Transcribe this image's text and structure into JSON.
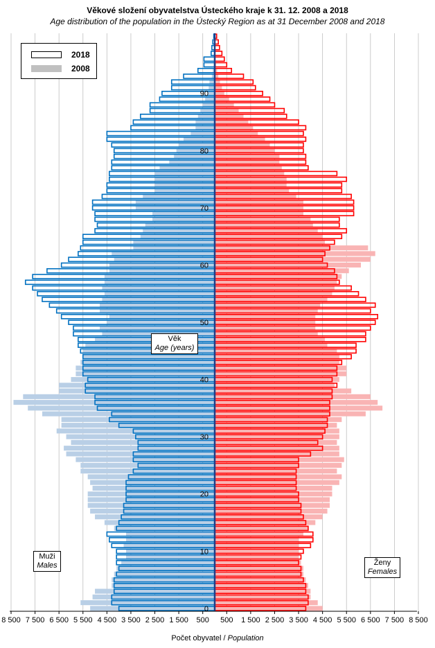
{
  "title": "Věkové složení obyvatelstva Ústeckého kraje k 31. 12. 2008 a 2018",
  "subtitle": "Age distribution of the population in the Ústecký Region as at 31 December 2008 and 2018",
  "legend": {
    "items": [
      {
        "label": "2018",
        "color": "#ffffff"
      },
      {
        "label": "2008",
        "color": "#b9cfe6"
      }
    ]
  },
  "labels": {
    "age_cz": "Věk",
    "age_en": "Age (years)",
    "males_cz": "Muži",
    "males_en": "Males",
    "females_cz": "Ženy",
    "females_en": "Females",
    "xlabel_cz": "Počet obyvatel",
    "xlabel_en": "Population"
  },
  "colors": {
    "male_2018": "#0070c0",
    "male_2008": "#b9cfe6",
    "female_2018": "#ff0000",
    "female_2008": "#f9b4b4",
    "center": "#1f3f88"
  },
  "chart_data": {
    "type": "bar",
    "orientation": "horizontal-pyramid",
    "ages": [
      0,
      1,
      2,
      3,
      4,
      5,
      6,
      7,
      8,
      9,
      10,
      11,
      12,
      13,
      14,
      15,
      16,
      17,
      18,
      19,
      20,
      21,
      22,
      23,
      24,
      25,
      26,
      27,
      28,
      29,
      30,
      31,
      32,
      33,
      34,
      35,
      36,
      37,
      38,
      39,
      40,
      41,
      42,
      43,
      44,
      45,
      46,
      47,
      48,
      49,
      50,
      51,
      52,
      53,
      54,
      55,
      56,
      57,
      58,
      59,
      60,
      61,
      62,
      63,
      64,
      65,
      66,
      67,
      68,
      69,
      70,
      71,
      72,
      73,
      74,
      75,
      76,
      77,
      78,
      79,
      80,
      81,
      82,
      83,
      84,
      85,
      86,
      87,
      88,
      89,
      90,
      91,
      92,
      93,
      94,
      95,
      96,
      97,
      98,
      99,
      100
    ],
    "series": [
      {
        "name": "Muži 2018",
        "side": "left",
        "values": [
          4000,
          4300,
          4300,
          4200,
          4200,
          4200,
          4100,
          4000,
          4100,
          4100,
          4100,
          4300,
          4400,
          4500,
          4100,
          4000,
          3900,
          3800,
          3800,
          3700,
          3700,
          3700,
          3700,
          3600,
          3400,
          3200,
          3400,
          3400,
          3200,
          3200,
          3300,
          3400,
          4000,
          4400,
          4300,
          4900,
          5000,
          5000,
          5400,
          5400,
          5300,
          5500,
          5500,
          5500,
          5500,
          5600,
          5700,
          5700,
          5900,
          5900,
          6100,
          6400,
          6600,
          6900,
          7200,
          7400,
          7600,
          7900,
          7600,
          7000,
          6400,
          6100,
          5700,
          5600,
          5500,
          5500,
          5000,
          4900,
          5000,
          5000,
          5100,
          5100,
          4700,
          4500,
          4500,
          4400,
          4400,
          4300,
          4300,
          4200,
          4200,
          4300,
          4500,
          4500,
          3500,
          3400,
          3100,
          2700,
          2700,
          2300,
          2200,
          1800,
          1800,
          1300,
          700,
          450,
          450,
          150,
          120,
          80,
          40
        ]
      },
      {
        "name": "Muži 2008",
        "side": "left",
        "values": [
          5200,
          5600,
          5100,
          5000,
          4300,
          4300,
          4200,
          4100,
          3900,
          3700,
          3700,
          3800,
          3700,
          3700,
          4200,
          4600,
          5000,
          5200,
          5300,
          5300,
          5300,
          5100,
          5200,
          5300,
          5600,
          5600,
          5800,
          6200,
          6300,
          6000,
          6200,
          6600,
          6400,
          6400,
          7200,
          7800,
          8400,
          8000,
          6500,
          6500,
          6000,
          5800,
          5800,
          5600,
          5500,
          5500,
          5400,
          5000,
          4700,
          4800,
          4500,
          4400,
          4800,
          4800,
          4700,
          4600,
          4700,
          4600,
          4600,
          4400,
          4400,
          4200,
          4300,
          3400,
          3400,
          3100,
          3000,
          2900,
          2600,
          2600,
          3300,
          3300,
          3000,
          2500,
          2500,
          2500,
          2500,
          2300,
          1900,
          1700,
          1600,
          1500,
          1300,
          1000,
          800,
          800,
          700,
          600,
          500,
          400,
          300,
          250,
          220,
          120,
          80,
          40,
          30,
          20,
          10,
          5,
          2
        ]
      },
      {
        "name": "Ženy 2018",
        "side": "right",
        "values": [
          3800,
          3900,
          3900,
          3800,
          3800,
          3700,
          3600,
          3600,
          3500,
          3600,
          3700,
          4000,
          4100,
          4100,
          3900,
          3800,
          3700,
          3600,
          3600,
          3500,
          3500,
          3400,
          3400,
          3400,
          3400,
          3500,
          3500,
          4000,
          4500,
          4300,
          4500,
          4600,
          4700,
          4700,
          4800,
          4800,
          4800,
          4900,
          4900,
          5100,
          4900,
          5100,
          5100,
          5300,
          5700,
          5900,
          5900,
          6300,
          6300,
          6500,
          6700,
          6800,
          6500,
          6700,
          6300,
          6000,
          5700,
          5200,
          5100,
          5000,
          4700,
          4500,
          4600,
          4800,
          5000,
          5300,
          5500,
          5200,
          5200,
          5800,
          5800,
          5800,
          5700,
          5300,
          5300,
          5500,
          5100,
          3900,
          3800,
          3800,
          3700,
          3700,
          3800,
          3700,
          3800,
          3500,
          3000,
          2900,
          2500,
          2300,
          2000,
          1700,
          1600,
          1200,
          700,
          500,
          400,
          300,
          200,
          150,
          80
        ]
      },
      {
        "name": "Ženy 2008",
        "side": "right",
        "values": [
          4500,
          4300,
          4000,
          4000,
          3900,
          3800,
          3700,
          3700,
          3600,
          3500,
          3500,
          3500,
          3500,
          3700,
          3900,
          4200,
          4500,
          4700,
          4800,
          4800,
          4900,
          4900,
          5200,
          5300,
          5100,
          5300,
          5400,
          5200,
          5200,
          5100,
          5200,
          5200,
          5100,
          5300,
          6300,
          7000,
          6800,
          6500,
          5700,
          5000,
          5200,
          5500,
          5500,
          5200,
          5200,
          5100,
          4700,
          4600,
          4300,
          4200,
          4200,
          4200,
          4300,
          4400,
          4700,
          4900,
          5000,
          5100,
          5300,
          5600,
          6100,
          6500,
          6700,
          6400,
          4600,
          4500,
          4300,
          4100,
          4000,
          3700,
          3700,
          3700,
          3400,
          3100,
          3000,
          3000,
          2900,
          2800,
          2700,
          2700,
          2500,
          2300,
          2100,
          1800,
          1600,
          1400,
          1200,
          1000,
          800,
          600,
          400,
          300,
          220,
          150,
          100,
          60,
          40,
          20,
          10,
          5,
          2
        ]
      }
    ],
    "x_ticks": [
      "8 500",
      "7 500",
      "6 500",
      "5 500",
      "4 500",
      "3 500",
      "2 500",
      "1 500",
      "500",
      "500",
      "1 500",
      "2 500",
      "3 500",
      "4 500",
      "5 500",
      "6 500",
      "7 500",
      "8 500"
    ],
    "y_ticks": [
      0,
      10,
      20,
      30,
      40,
      50,
      60,
      70,
      80,
      90
    ],
    "xlim": [
      -8500,
      8500
    ],
    "ylim": [
      0,
      100
    ],
    "xlabel": "Počet obyvatel / Population",
    "grid": true
  }
}
